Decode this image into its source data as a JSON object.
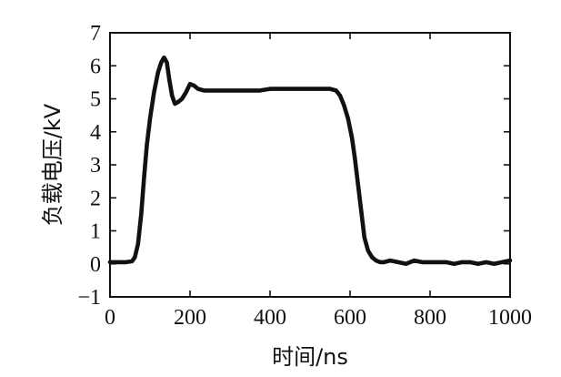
{
  "chart_data": {
    "type": "line",
    "xlabel": "时间/ns",
    "ylabel": "负载电压/kV",
    "xlim": [
      0,
      1000
    ],
    "ylim": [
      -1,
      7
    ],
    "xticks": [
      0,
      200,
      400,
      600,
      800,
      1000
    ],
    "yticks": [
      -1,
      0,
      1,
      2,
      3,
      4,
      5,
      6,
      7
    ],
    "grid": false,
    "line_color": "#111111",
    "series": [
      {
        "x": [
          0,
          20,
          40,
          55,
          62,
          70,
          78,
          85,
          92,
          100,
          110,
          120,
          128,
          135,
          142,
          148,
          155,
          162,
          170,
          180,
          190,
          200,
          210,
          220,
          235,
          250,
          275,
          300,
          325,
          350,
          375,
          400,
          425,
          450,
          475,
          500,
          525,
          550,
          565,
          575,
          585,
          595,
          605,
          612,
          620,
          628,
          636,
          645,
          655,
          665,
          675,
          685,
          700,
          720,
          740,
          760,
          780,
          800,
          820,
          840,
          860,
          880,
          900,
          920,
          940,
          960,
          980,
          1000
        ],
        "y": [
          0.05,
          0.05,
          0.05,
          0.08,
          0.2,
          0.6,
          1.5,
          2.6,
          3.6,
          4.4,
          5.2,
          5.8,
          6.1,
          6.25,
          6.1,
          5.6,
          5.1,
          4.85,
          4.9,
          5.0,
          5.2,
          5.45,
          5.4,
          5.3,
          5.25,
          5.25,
          5.25,
          5.25,
          5.25,
          5.25,
          5.25,
          5.3,
          5.3,
          5.3,
          5.3,
          5.3,
          5.3,
          5.3,
          5.25,
          5.1,
          4.8,
          4.4,
          3.8,
          3.2,
          2.4,
          1.6,
          0.8,
          0.4,
          0.2,
          0.1,
          0.05,
          0.05,
          0.1,
          0.05,
          0.0,
          0.1,
          0.05,
          0.05,
          0.05,
          0.05,
          0.0,
          0.05,
          0.05,
          0.0,
          0.05,
          0.0,
          0.05,
          0.1
        ]
      }
    ]
  }
}
